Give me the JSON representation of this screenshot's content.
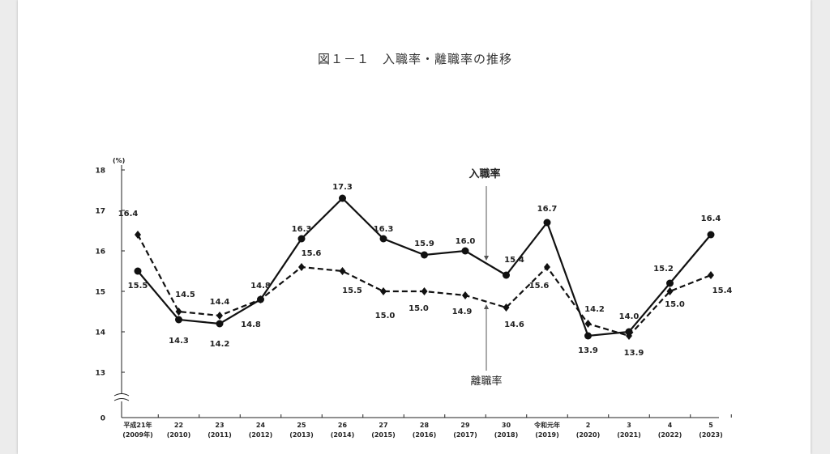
{
  "title": "図１－１　入職率・離職率の推移",
  "chart_data": {
    "type": "line",
    "title": "図１－１　入職率・離職率の推移",
    "y_unit": "(%)",
    "ylim": [
      13,
      18
    ],
    "yticks": [
      "18",
      "17",
      "16",
      "15",
      "14",
      "13"
    ],
    "y_zero_label": "0",
    "axis_break": true,
    "grid": false,
    "categories": [
      [
        "平成21年",
        "(2009年)"
      ],
      [
        "22",
        "(2010)"
      ],
      [
        "23",
        "(2011)"
      ],
      [
        "24",
        "(2012)"
      ],
      [
        "25",
        "(2013)"
      ],
      [
        "26",
        "(2014)"
      ],
      [
        "27",
        "(2015)"
      ],
      [
        "28",
        "(2016)"
      ],
      [
        "29",
        "(2017)"
      ],
      [
        "30",
        "(2018)"
      ],
      [
        "令和元年",
        "(2019)"
      ],
      [
        "2",
        "(2020)"
      ],
      [
        "3",
        "(2021)"
      ],
      [
        "4",
        "(2022)"
      ],
      [
        "5",
        "(2023)"
      ]
    ],
    "series": [
      {
        "name": "入職率",
        "style": "solid",
        "marker": "circle",
        "color": "#111111",
        "values": [
          15.5,
          14.3,
          14.2,
          14.8,
          16.3,
          17.3,
          16.3,
          15.9,
          16.0,
          15.4,
          16.7,
          13.9,
          14.0,
          15.2,
          16.4
        ],
        "labels": [
          "15.5",
          "14.3",
          "14.2",
          "14.8",
          "16.3",
          "17.3",
          "16.3",
          "15.9",
          "16.0",
          "15.4",
          "16.7",
          "13.9",
          "14.0",
          "15.2",
          "16.4"
        ]
      },
      {
        "name": "離職率",
        "style": "dashed",
        "marker": "diamond",
        "color": "#111111",
        "values": [
          16.4,
          14.5,
          14.4,
          14.8,
          15.6,
          15.5,
          15.0,
          15.0,
          14.9,
          14.6,
          15.6,
          14.2,
          13.9,
          15.0,
          15.4
        ],
        "labels": [
          "16.4",
          "14.5",
          "14.4",
          "14.8",
          "15.6",
          "15.5",
          "15.0",
          "15.0",
          "14.9",
          "14.6",
          "15.6",
          "14.2",
          "13.9",
          "15.0",
          "15.4"
        ]
      }
    ]
  }
}
